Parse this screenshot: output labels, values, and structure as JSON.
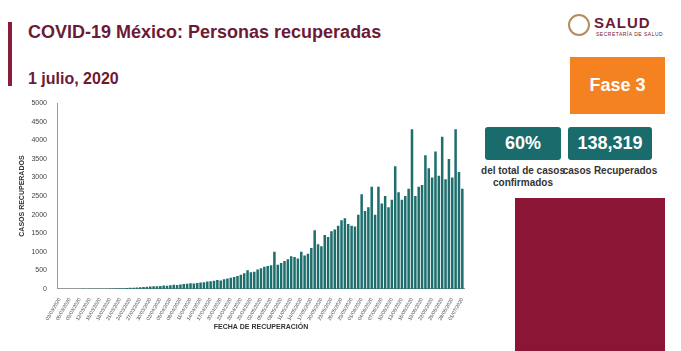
{
  "header": {
    "logo": "SALUD",
    "logo_subtext": "SECRETARÍA DE SALUD",
    "phase": "Fase 3"
  },
  "stats": [
    {
      "value": "60%",
      "label": "del total de casos confirmados"
    },
    {
      "value": "138,319",
      "label": "casos Recuperados"
    }
  ],
  "chart_data": {
    "type": "bar",
    "title": "COVID-19 México: Personas recuperadas",
    "subtitle": "1 julio, 2020",
    "x_label": "FECHA DE RECUPERACIÓN",
    "y_label": "CASOS RECUPERADOS",
    "categories": [
      "03/03/2020",
      null,
      null,
      "06/03/2020",
      null,
      null,
      "09/03/2020",
      null,
      null,
      "12/03/2020",
      null,
      null,
      "15/03/2020",
      null,
      null,
      "18/03/2020",
      null,
      null,
      "21/03/2020",
      null,
      null,
      "24/03/2020",
      null,
      null,
      "27/03/2020",
      null,
      null,
      "30/03/2020",
      null,
      null,
      "02/04/2020",
      null,
      null,
      "05/04/2020",
      null,
      null,
      "08/04/2020",
      null,
      null,
      "11/04/2020",
      null,
      null,
      "14/04/2020",
      null,
      null,
      "17/04/2020",
      null,
      null,
      "20/04/2020",
      null,
      null,
      "23/04/2020",
      null,
      null,
      "26/04/2020",
      null,
      null,
      "29/04/2020",
      null,
      null,
      "02/05/2020",
      null,
      null,
      "05/05/2020",
      null,
      null,
      "08/05/2020",
      null,
      null,
      "11/05/2020",
      null,
      null,
      "14/05/2020",
      null,
      null,
      "17/05/2020",
      null,
      null,
      "20/05/2020",
      null,
      null,
      "23/05/2020",
      null,
      null,
      "26/05/2020",
      null,
      null,
      "29/05/2020",
      null,
      null,
      "01/06/2020",
      null,
      null,
      "04/06/2020",
      null,
      null,
      "07/06/2020",
      null,
      null,
      "10/06/2020",
      null,
      null,
      "13/06/2020",
      null,
      null,
      "16/06/2020",
      null,
      null,
      "19/06/2020",
      null,
      null,
      "22/06/2020",
      null,
      null,
      "25/06/2020",
      null,
      null,
      "28/06/2020",
      null,
      null,
      "01/07/2020"
    ],
    "values": [
      0,
      0,
      0,
      0,
      0,
      1,
      0,
      2,
      1,
      3,
      2,
      5,
      4,
      6,
      8,
      10,
      12,
      15,
      18,
      20,
      25,
      30,
      35,
      40,
      45,
      50,
      60,
      65,
      70,
      75,
      80,
      90,
      85,
      100,
      110,
      105,
      120,
      130,
      140,
      150,
      145,
      160,
      170,
      180,
      200,
      210,
      220,
      240,
      230,
      260,
      280,
      300,
      320,
      350,
      380,
      420,
      500,
      450,
      460,
      520,
      560,
      600,
      620,
      640,
      1000,
      650,
      700,
      750,
      800,
      880,
      860,
      820,
      1000,
      900,
      950,
      1100,
      1580,
      1200,
      1150,
      1450,
      1400,
      1550,
      1600,
      1700,
      1850,
      1900,
      1750,
      1700,
      1680,
      2000,
      2550,
      2100,
      2200,
      2750,
      2000,
      2750,
      2300,
      2500,
      2200,
      2400,
      3300,
      2600,
      2400,
      2500,
      2700,
      4300,
      2500,
      2750,
      2800,
      3600,
      3250,
      3000,
      3700,
      3050,
      4100,
      2950,
      3500,
      3000,
      4300,
      3150,
      2700
    ],
    "color": "#1f6e6e",
    "ylim": [
      0,
      5000
    ],
    "yticks": [
      0,
      500,
      1000,
      1500,
      2000,
      2500,
      3000,
      3500,
      4000,
      4500,
      5000
    ],
    "grid": false
  }
}
